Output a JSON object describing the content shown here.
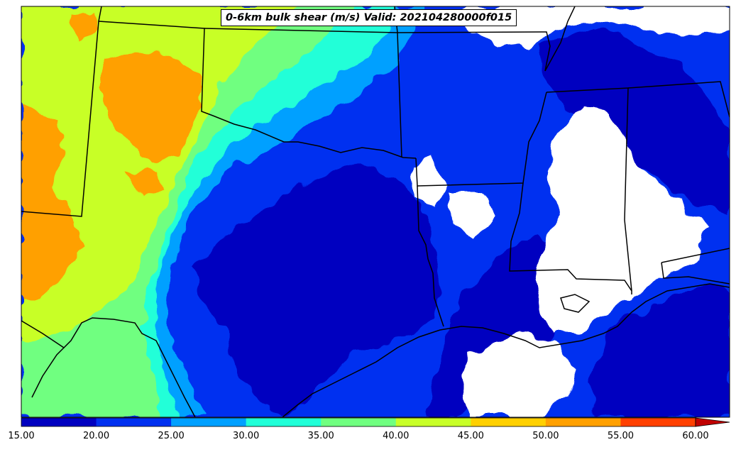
{
  "title": "0-6km bulk shear (m/s) Valid: 202104280000f015",
  "colorbar": {
    "ticks": [
      "15.00",
      "20.00",
      "25.00",
      "30.00",
      "35.00",
      "40.00",
      "45.00",
      "50.00",
      "55.00",
      "60.00"
    ],
    "colors": [
      "#0000c0",
      "#0030f0",
      "#00a0ff",
      "#20ffd8",
      "#70ff80",
      "#c8ff28",
      "#ffd000",
      "#ffa000",
      "#ff4000",
      "#c00000"
    ],
    "extend": "max"
  },
  "map": {
    "region": "South-Central United States and Gulf Coast",
    "field": "0-6km bulk shear",
    "units": "m/s"
  }
}
